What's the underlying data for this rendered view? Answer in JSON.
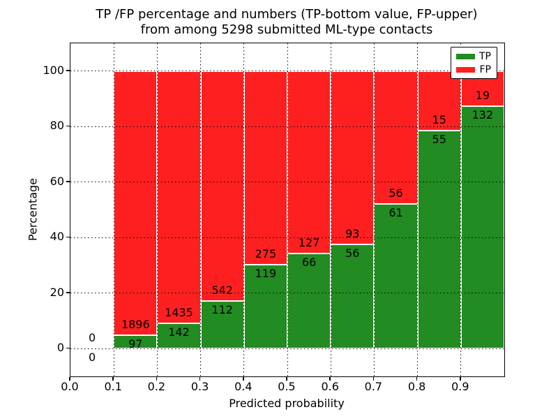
{
  "chart_data": {
    "type": "bar",
    "stacked": true,
    "title": "TP /FP percentage and numbers (TP-bottom value, FP-upper)\nfrom among 5298 submitted ML-type contacts",
    "title_lines": [
      "TP /FP percentage and numbers (TP-bottom value, FP-upper)",
      "from among 5298 submitted ML-type contacts"
    ],
    "xlabel": "Predicted probability",
    "ylabel": "Percentage",
    "total_contacts": 5298,
    "bin_width": 0.1,
    "bins": [
      {
        "x_start": 0.0,
        "tp_count": 0,
        "fp_count": 0,
        "tp_percent": 0.0
      },
      {
        "x_start": 0.1,
        "tp_count": 97,
        "fp_count": 1896,
        "tp_percent": 4.9
      },
      {
        "x_start": 0.2,
        "tp_count": 142,
        "fp_count": 1435,
        "tp_percent": 9.0
      },
      {
        "x_start": 0.3,
        "tp_count": 112,
        "fp_count": 542,
        "tp_percent": 17.1
      },
      {
        "x_start": 0.4,
        "tp_count": 119,
        "fp_count": 275,
        "tp_percent": 30.2
      },
      {
        "x_start": 0.5,
        "tp_count": 66,
        "fp_count": 127,
        "tp_percent": 34.2
      },
      {
        "x_start": 0.6,
        "tp_count": 56,
        "fp_count": 93,
        "tp_percent": 37.6
      },
      {
        "x_start": 0.7,
        "tp_count": 61,
        "fp_count": 56,
        "tp_percent": 52.1
      },
      {
        "x_start": 0.8,
        "tp_count": 55,
        "fp_count": 15,
        "tp_percent": 78.6
      },
      {
        "x_start": 0.9,
        "tp_count": 132,
        "fp_count": 19,
        "tp_percent": 87.4
      }
    ],
    "xticks": [
      "0.0",
      "0.1",
      "0.2",
      "0.3",
      "0.4",
      "0.5",
      "0.6",
      "0.7",
      "0.8",
      "0.9"
    ],
    "yticks": [
      0,
      20,
      40,
      60,
      80,
      100
    ],
    "xlim": [
      0.0,
      1.0
    ],
    "ylim": [
      -10,
      110
    ],
    "grid": true,
    "colors": {
      "tp": "#228b22",
      "fp": "#fe2020",
      "grid": "#000000"
    },
    "legend": {
      "position": "upper-right",
      "entries": [
        {
          "label": "TP",
          "color": "#228b22"
        },
        {
          "label": "FP",
          "color": "#fe2020"
        }
      ]
    }
  }
}
